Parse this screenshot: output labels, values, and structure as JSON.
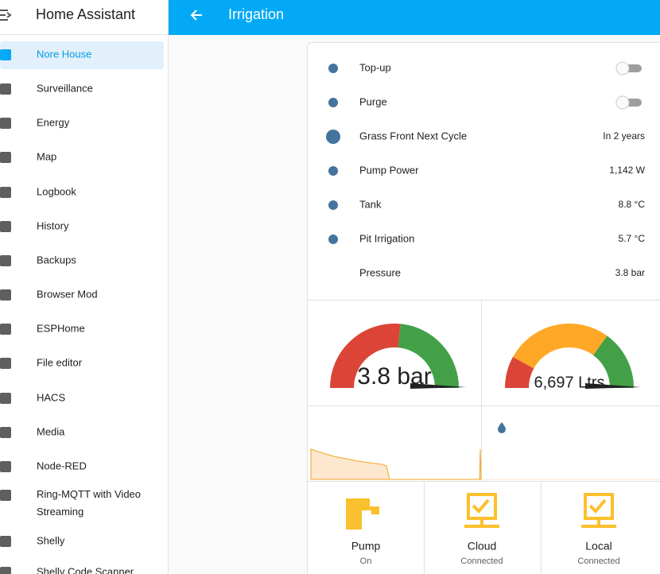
{
  "sidebar": {
    "title": "Home Assistant",
    "items": [
      {
        "label": "Nore House"
      },
      {
        "label": "Surveillance"
      },
      {
        "label": "Energy"
      },
      {
        "label": "Map"
      },
      {
        "label": "Logbook"
      },
      {
        "label": "History"
      },
      {
        "label": "Backups"
      },
      {
        "label": "Browser Mod"
      },
      {
        "label": "ESPHome"
      },
      {
        "label": "File editor"
      },
      {
        "label": "HACS"
      },
      {
        "label": "Media"
      },
      {
        "label": "Node-RED"
      },
      {
        "label": "Ring-MQTT with Video Streaming"
      },
      {
        "label": "Shelly"
      },
      {
        "label": "Shelly Code Scanner"
      }
    ]
  },
  "header": {
    "title": "Irrigation"
  },
  "entities": [
    {
      "name": "Top-up"
    },
    {
      "name": "Purge"
    },
    {
      "name": "Grass Front Next Cycle",
      "state": "In 2 years"
    },
    {
      "name": "Pump Power",
      "state": "1,142 W"
    },
    {
      "name": "Tank",
      "state": "8.8 °C"
    },
    {
      "name": "Pit Irrigation",
      "state": "5.7 °C"
    },
    {
      "name": "Pressure",
      "state": "3.8 bar"
    }
  ],
  "gauges": [
    {
      "value": "3.8 bar"
    },
    {
      "value": "6,697 Ltrs"
    }
  ],
  "buttons": [
    {
      "name": "Pump",
      "state": "On"
    },
    {
      "name": "Cloud",
      "state": "Connected"
    },
    {
      "name": "Local",
      "state": "Connected"
    }
  ]
}
